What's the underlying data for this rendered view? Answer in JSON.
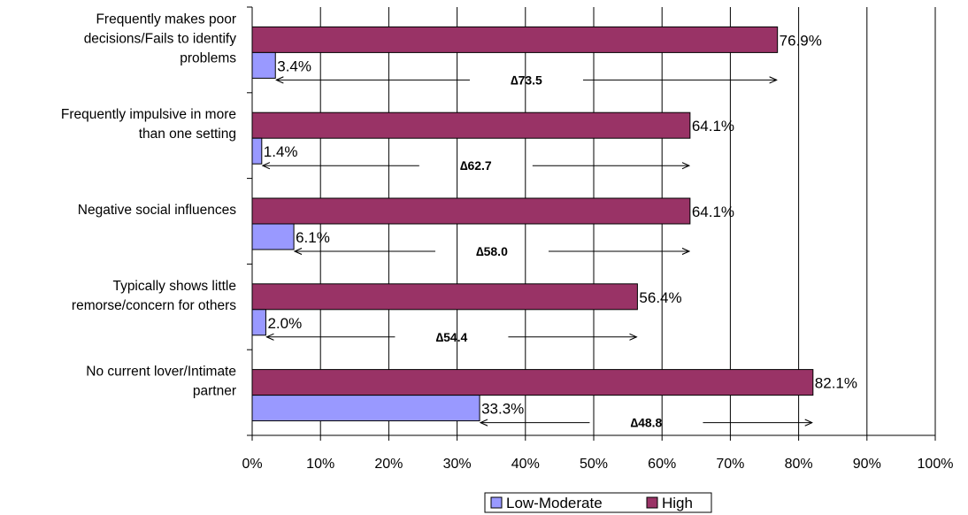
{
  "chart_data": {
    "type": "bar",
    "orientation": "horizontal",
    "categories": [
      "Frequently makes poor decisions/Fails to identify problems",
      "Frequently impulsive in more than one setting",
      "Negative social influences",
      "Typically shows little remorse/concern for others",
      "No current lover/Intimate partner"
    ],
    "category_lines": [
      [
        "Frequently makes poor",
        "decisions/Fails to identify",
        "problems"
      ],
      [
        "Frequently impulsive in more",
        "than one setting"
      ],
      [
        "Negative social influences"
      ],
      [
        "Typically shows little",
        "remorse/concern for others"
      ],
      [
        "No current lover/Intimate",
        "partner"
      ]
    ],
    "series": [
      {
        "name": "Low-Moderate",
        "values": [
          3.4,
          1.4,
          6.1,
          2.0,
          33.3
        ],
        "labels": [
          "3.4%",
          "1.4%",
          "6.1%",
          "2.0%",
          "33.3%"
        ],
        "color": "#9999ff"
      },
      {
        "name": "High",
        "values": [
          76.9,
          64.1,
          64.1,
          56.4,
          82.1
        ],
        "labels": [
          "76.9%",
          "64.1%",
          "64.1%",
          "56.4%",
          "82.1%"
        ],
        "color": "#993366"
      }
    ],
    "annotations": [
      "∆73.5",
      "∆62.7",
      "∆58.0",
      "∆54.4",
      "∆48.8"
    ],
    "xlim": [
      0,
      100
    ],
    "x_ticks": [
      "0%",
      "10%",
      "20%",
      "30%",
      "40%",
      "50%",
      "60%",
      "70%",
      "80%",
      "90%",
      "100%"
    ],
    "grid": "vertical",
    "legend_position": "bottom",
    "title": "",
    "xlabel": "",
    "ylabel": ""
  }
}
